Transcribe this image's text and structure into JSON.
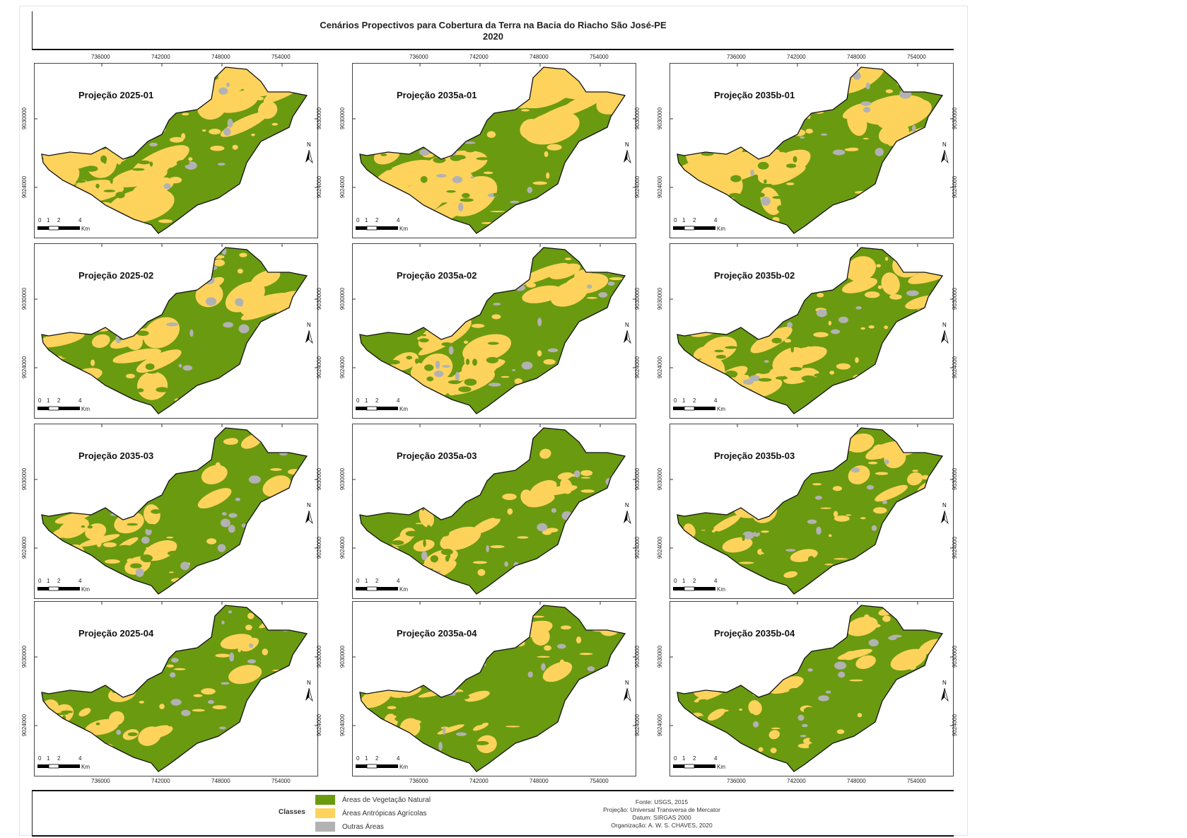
{
  "title": {
    "line1": "Cenários Propectivos para Cobertura da Terra na Bacia do Riacho São José-PE",
    "line2": "2020"
  },
  "axes": {
    "x_ticks": [
      "736000",
      "742000",
      "748000",
      "754000"
    ],
    "y_ticks": [
      "9030000",
      "9024000"
    ]
  },
  "scale_bar": {
    "labels": [
      "0",
      "1",
      "2",
      "4"
    ],
    "unit": "Km"
  },
  "north_label": "N",
  "panels": [
    {
      "title": "Projeção 2025-01"
    },
    {
      "title": "Projeção 2035a-01"
    },
    {
      "title": "Projeção  2035b-01"
    },
    {
      "title": "Projeção 2025-02"
    },
    {
      "title": "Projeção 2035a-02"
    },
    {
      "title": "Projeção  2035b-02"
    },
    {
      "title": "Projeção 2035-03"
    },
    {
      "title": "Projeção 2035a-03"
    },
    {
      "title": "Projeção  2035b-03"
    },
    {
      "title": "Projeção 2025-04"
    },
    {
      "title": "Projeção 2035a-04"
    },
    {
      "title": "Projeção 2035b-04"
    }
  ],
  "legend": {
    "heading": "Classes",
    "items": [
      {
        "label": "Áreas de Vegetação Natural",
        "color": "#6a9a10"
      },
      {
        "label": "Áreas Antrópicas Agrícolas",
        "color": "#fdd35c"
      },
      {
        "label": "Outras Áreas",
        "color": "#b2b2b2"
      }
    ]
  },
  "credits": [
    "Fonte: USGS, 2015",
    "Projeção: Universal Transversa de Mercator",
    "Datum: SIRGAS 2000",
    "Organização: A. W. S. CHAVES, 2020"
  ]
}
